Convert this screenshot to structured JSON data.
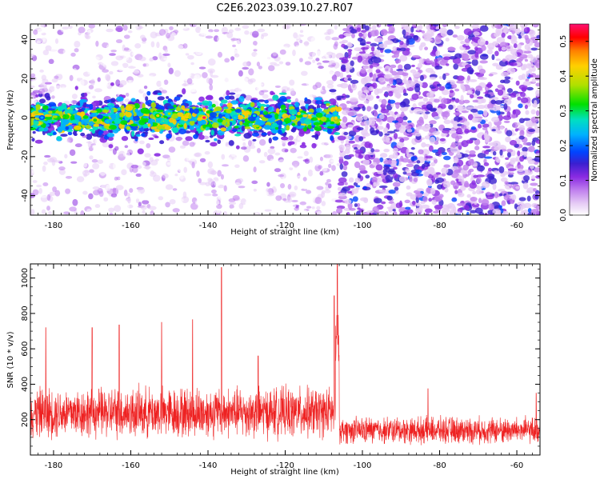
{
  "title": "C2E6.2023.039.10.27.R07",
  "colors": {
    "snr_line": "#ee2222",
    "colormap": [
      "#ffffff",
      "#e6ccf5",
      "#c080ee",
      "#8a2be2",
      "#3a1fd0",
      "#0044ff",
      "#00b0ff",
      "#00e0c0",
      "#00e000",
      "#b0e000",
      "#ffd000",
      "#ff8000",
      "#ff0000",
      "#ff1070"
    ]
  },
  "chart_data": [
    {
      "type": "heatmap",
      "xlabel": "Height of straight line (km)",
      "ylabel": "Frequency (Hz)",
      "xlim": [
        -186,
        -54
      ],
      "ylim": [
        -50,
        48
      ],
      "xticks": [
        -180,
        -160,
        -140,
        -120,
        -100,
        -80,
        -60
      ],
      "yticks": [
        -40,
        -20,
        0,
        20,
        40
      ],
      "colorbar": {
        "label": "Normalized spectral amplitude",
        "range": [
          0,
          0.55
        ],
        "ticks": [
          0.0,
          0.1,
          0.2,
          0.3,
          0.4,
          0.5
        ]
      },
      "features": {
        "band_center_hz": 0,
        "band_halfwidth_hz": 6,
        "band_end_km": -106,
        "low_amplitude_region_km": [
          -186,
          -106
        ],
        "high_amplitude_noise_region_km": [
          -106,
          -54
        ],
        "peak_amplitude": 0.55,
        "peak_at": [
          -141,
          0
        ]
      }
    },
    {
      "type": "line",
      "xlabel": "Height of straight line (km)",
      "ylabel": "SNR (10 * v/v)",
      "xlim": [
        -186,
        -54
      ],
      "ylim": [
        0,
        1080
      ],
      "xticks": [
        -180,
        -160,
        -140,
        -120,
        -100,
        -80,
        -60
      ],
      "yticks": [
        200,
        400,
        600,
        800,
        1000
      ],
      "series": [
        {
          "x_range": [
            -186,
            -54
          ],
          "baseline_segments": [
            {
              "x": [
                -186,
                -107
              ],
              "mean": 240,
              "spread": 170
            },
            {
              "x": [
                -107,
                -106
              ],
              "mean": 650,
              "spread": 200
            },
            {
              "x": [
                -106,
                -54
              ],
              "mean": 140,
              "spread": 90
            }
          ],
          "peaks": [
            {
              "x": -182,
              "y": 720
            },
            {
              "x": -170,
              "y": 720
            },
            {
              "x": -163,
              "y": 735
            },
            {
              "x": -152,
              "y": 750
            },
            {
              "x": -144,
              "y": 765
            },
            {
              "x": -136.5,
              "y": 1060
            },
            {
              "x": -127,
              "y": 560
            },
            {
              "x": -106.5,
              "y": 1080
            },
            {
              "x": -107.3,
              "y": 900
            },
            {
              "x": -83,
              "y": 375
            },
            {
              "x": -55,
              "y": 350
            }
          ]
        }
      ]
    }
  ]
}
